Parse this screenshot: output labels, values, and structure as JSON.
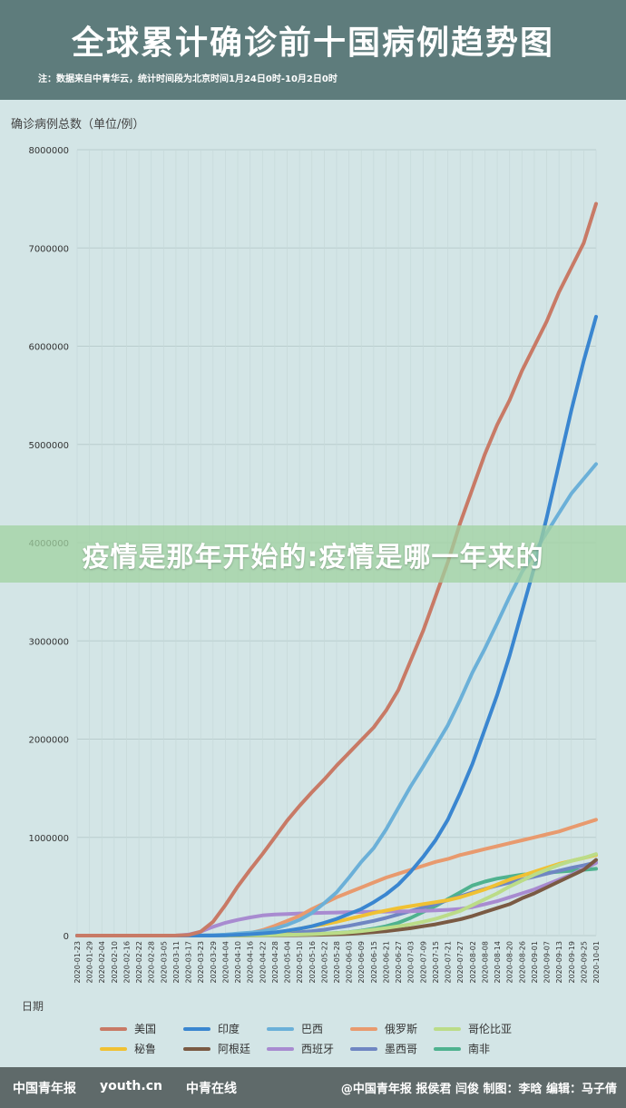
{
  "header": {
    "title": "全球累计确诊前十国病例趋势图",
    "subtitle": "注：数据来自中青华云，统计时间段为北京时间1月24日0时-10月2日0时"
  },
  "overlay_text": "疫情是那年开始的:疫情是哪一年来的",
  "footer": {
    "logos": [
      "中国青年报",
      "youth.cn",
      "中青在线"
    ],
    "credit": "@中国青年报 报侯君 闫俊 制图：李晗 编辑：马子倩"
  },
  "colors": {
    "header_bg": "#5e7c7c",
    "plot_bg": "#d3e5e6",
    "footer_bg": "#5f6a6a"
  },
  "chart_data": {
    "type": "line",
    "title": "全球累计确诊前十国病例趋势图",
    "ylabel": "确诊病例总数（单位/例）",
    "xlabel": "日期",
    "ylim": [
      0,
      8000000
    ],
    "yticks": [
      "0",
      "1000000",
      "2000000",
      "3000000",
      "4000000",
      "5000000",
      "6000000",
      "7000000",
      "8000000"
    ],
    "grid": true,
    "legend_position": "bottom",
    "x": [
      "2020-01-23",
      "2020-01-29",
      "2020-02-04",
      "2020-02-10",
      "2020-02-16",
      "2020-02-22",
      "2020-02-28",
      "2020-03-05",
      "2020-03-11",
      "2020-03-17",
      "2020-03-23",
      "2020-03-29",
      "2020-04-04",
      "2020-04-10",
      "2020-04-16",
      "2020-04-22",
      "2020-04-28",
      "2020-05-04",
      "2020-05-10",
      "2020-05-16",
      "2020-05-22",
      "2020-05-28",
      "2020-06-03",
      "2020-06-09",
      "2020-06-15",
      "2020-06-21",
      "2020-06-27",
      "2020-07-03",
      "2020-07-09",
      "2020-07-15",
      "2020-07-21",
      "2020-07-27",
      "2020-08-02",
      "2020-08-08",
      "2020-08-14",
      "2020-08-20",
      "2020-08-26",
      "2020-09-01",
      "2020-09-07",
      "2020-09-13",
      "2020-09-19",
      "2020-09-25",
      "2020-10-01"
    ],
    "xtick_labels": [
      "2020-01-23",
      "2020-01-29",
      "2020-02-04",
      "2020-02-10",
      "2020-02-16",
      "2020-02-22",
      "2020-02-28",
      "2020-03-05",
      "2020-03-11",
      "2020-03-17",
      "2020-03-23",
      "2020-03-29",
      "2020-04-04",
      "2020-04-10",
      "2020-04-16",
      "2020-04-22",
      "2020-04-28",
      "2020-05-04",
      "2020-05-10",
      "2020-05-16",
      "2020-05-22",
      "2020-05-28",
      "2020-06-03",
      "2020-06-09",
      "2020-06-15",
      "2020-06-21",
      "2020-06-27",
      "2020-07-03",
      "2020-07-09",
      "2020-07-15",
      "2020-07-21",
      "2020-07-27",
      "2020-08-02",
      "2020-08-08",
      "2020-08-14",
      "2020-08-20",
      "2020-08-26",
      "2020-09-01",
      "2020-09-07",
      "2020-09-13",
      "2020-09-19",
      "2020-09-25",
      "2020-10-01"
    ],
    "series": [
      {
        "name": "美国",
        "color": "#c87a66",
        "values": [
          0,
          0,
          0,
          0,
          0,
          0,
          0,
          0,
          1000,
          6000,
          40000,
          140000,
          310000,
          500000,
          670000,
          830000,
          1000000,
          1170000,
          1320000,
          1460000,
          1590000,
          1730000,
          1860000,
          1990000,
          2120000,
          2290000,
          2500000,
          2800000,
          3100000,
          3450000,
          3800000,
          4200000,
          4550000,
          4900000,
          5200000,
          5450000,
          5750000,
          6000000,
          6250000,
          6550000,
          6800000,
          7050000,
          7450000
        ]
      },
      {
        "name": "印度",
        "color": "#3a86d0",
        "values": [
          0,
          0,
          0,
          0,
          0,
          0,
          0,
          0,
          0,
          0,
          0,
          0,
          3000,
          8000,
          14000,
          22000,
          32000,
          50000,
          70000,
          95000,
          130000,
          170000,
          220000,
          270000,
          340000,
          420000,
          520000,
          650000,
          800000,
          970000,
          1180000,
          1450000,
          1750000,
          2100000,
          2450000,
          2850000,
          3300000,
          3750000,
          4250000,
          4800000,
          5350000,
          5850000,
          6300000
        ]
      },
      {
        "name": "巴西",
        "color": "#6bb0d8",
        "values": [
          0,
          0,
          0,
          0,
          0,
          0,
          0,
          0,
          0,
          0,
          2000,
          5000,
          10000,
          20000,
          30000,
          45000,
          70000,
          110000,
          160000,
          230000,
          330000,
          440000,
          590000,
          750000,
          890000,
          1080000,
          1300000,
          1520000,
          1720000,
          1930000,
          2140000,
          2400000,
          2680000,
          2920000,
          3180000,
          3450000,
          3700000,
          3900000,
          4100000,
          4300000,
          4500000,
          4650000,
          4800000
        ]
      },
      {
        "name": "俄罗斯",
        "color": "#e89a6e",
        "values": [
          0,
          0,
          0,
          0,
          0,
          0,
          0,
          0,
          0,
          0,
          0,
          2000,
          5000,
          12000,
          25000,
          55000,
          100000,
          150000,
          200000,
          270000,
          330000,
          390000,
          440000,
          490000,
          540000,
          590000,
          630000,
          670000,
          710000,
          750000,
          780000,
          820000,
          850000,
          880000,
          910000,
          940000,
          970000,
          1000000,
          1030000,
          1060000,
          1100000,
          1140000,
          1180000
        ]
      },
      {
        "name": "哥伦比亚",
        "color": "#bbdc88",
        "values": [
          0,
          0,
          0,
          0,
          0,
          0,
          0,
          0,
          0,
          0,
          0,
          0,
          1000,
          2000,
          3000,
          4000,
          6000,
          8000,
          10000,
          14000,
          19000,
          25000,
          33000,
          45000,
          60000,
          77000,
          95000,
          115000,
          140000,
          170000,
          210000,
          250000,
          310000,
          370000,
          430000,
          500000,
          560000,
          620000,
          670000,
          720000,
          760000,
          790000,
          830000
        ]
      },
      {
        "name": "秘鲁",
        "color": "#f0c133",
        "values": [
          0,
          0,
          0,
          0,
          0,
          0,
          0,
          0,
          0,
          0,
          0,
          0,
          1000,
          4000,
          10000,
          20000,
          30000,
          45000,
          70000,
          95000,
          115000,
          140000,
          170000,
          200000,
          230000,
          255000,
          280000,
          300000,
          320000,
          340000,
          360000,
          390000,
          430000,
          470000,
          520000,
          570000,
          610000,
          650000,
          690000,
          730000,
          760000,
          790000,
          820000
        ]
      },
      {
        "name": "阿根廷",
        "color": "#7a5a43",
        "values": [
          0,
          0,
          0,
          0,
          0,
          0,
          0,
          0,
          0,
          0,
          0,
          0,
          0,
          0,
          1000,
          2000,
          3000,
          4000,
          5000,
          7000,
          9000,
          13000,
          18000,
          25000,
          35000,
          45000,
          60000,
          75000,
          95000,
          115000,
          140000,
          165000,
          200000,
          240000,
          280000,
          320000,
          380000,
          430000,
          490000,
          550000,
          610000,
          670000,
          770000
        ]
      },
      {
        "name": "西班牙",
        "color": "#a88bd0",
        "values": [
          0,
          0,
          0,
          0,
          0,
          0,
          0,
          0,
          0,
          10000,
          40000,
          90000,
          130000,
          160000,
          185000,
          205000,
          215000,
          220000,
          225000,
          228000,
          232000,
          235000,
          238000,
          240000,
          242000,
          244000,
          246000,
          248000,
          252000,
          256000,
          262000,
          272000,
          290000,
          320000,
          350000,
          390000,
          430000,
          470000,
          520000,
          570000,
          620000,
          680000,
          740000
        ]
      },
      {
        "name": "墨西哥",
        "color": "#6f86c2",
        "values": [
          0,
          0,
          0,
          0,
          0,
          0,
          0,
          0,
          0,
          0,
          0,
          1000,
          2000,
          3000,
          5000,
          8000,
          14000,
          22000,
          33000,
          45000,
          60000,
          80000,
          100000,
          125000,
          150000,
          180000,
          215000,
          250000,
          285000,
          320000,
          360000,
          400000,
          440000,
          475000,
          510000,
          540000,
          570000,
          600000,
          630000,
          660000,
          690000,
          715000,
          745000
        ]
      },
      {
        "name": "南非",
        "color": "#4fb28f",
        "values": [
          0,
          0,
          0,
          0,
          0,
          0,
          0,
          0,
          0,
          0,
          0,
          1000,
          1500,
          2000,
          3000,
          4000,
          5000,
          7000,
          10000,
          15000,
          20000,
          27000,
          35000,
          50000,
          70000,
          95000,
          130000,
          180000,
          240000,
          300000,
          370000,
          440000,
          510000,
          550000,
          580000,
          600000,
          620000,
          630000,
          640000,
          650000,
          660000,
          670000,
          680000
        ]
      }
    ]
  }
}
